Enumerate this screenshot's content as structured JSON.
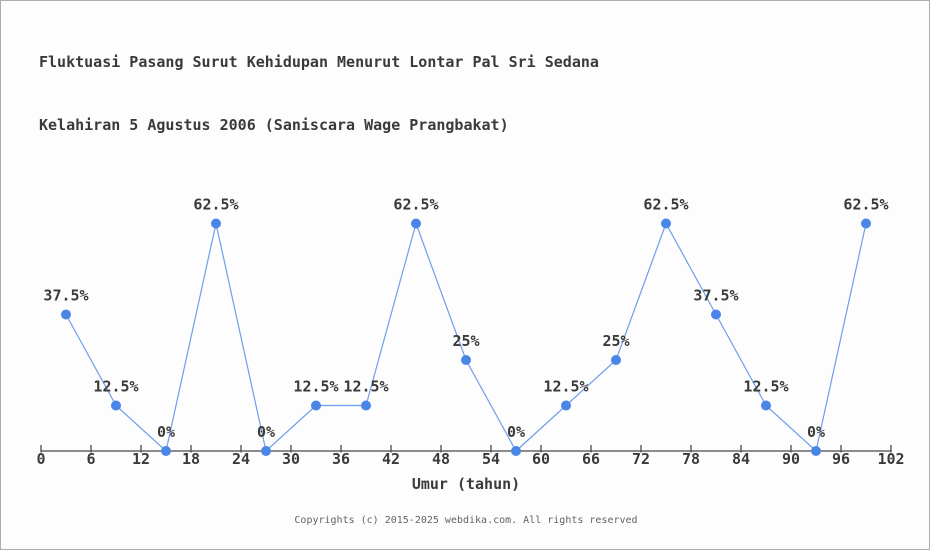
{
  "page": {
    "title_line1": "Fluktuasi Pasang Surut Kehidupan Menurut Lontar Pal Sri Sedana",
    "title_line2": "Kelahiran 5 Agustus 2006 (Saniscara Wage Prangbakat)",
    "footer": "Copyrights (c) 2015-2025 webdika.com. All rights reserved"
  },
  "chart_data": {
    "type": "line",
    "title": "Fluktuasi Pasang Surut Kehidupan Menurut Lontar Pal Sri Sedana Kelahiran 5 Agustus 2006 (Saniscara Wage Prangbakat)",
    "xlabel": "Umur (tahun)",
    "ylabel": "",
    "x": [
      3,
      9,
      15,
      21,
      27,
      33,
      39,
      45,
      51,
      57,
      63,
      69,
      75,
      81,
      87,
      93,
      99
    ],
    "values": [
      37.5,
      12.5,
      0,
      62.5,
      0,
      12.5,
      12.5,
      62.5,
      25,
      0,
      12.5,
      25,
      62.5,
      37.5,
      12.5,
      0,
      62.5
    ],
    "point_labels": [
      "37.5%",
      "12.5%",
      "0%",
      "62.5%",
      "0%",
      "12.5%",
      "12.5%",
      "62.5%",
      "25%",
      "0%",
      "12.5%",
      "25%",
      "62.5%",
      "37.5%",
      "12.5%",
      "0%",
      "62.5%"
    ],
    "x_ticks": [
      0,
      6,
      12,
      18,
      24,
      30,
      36,
      42,
      48,
      54,
      60,
      66,
      72,
      78,
      84,
      90,
      96,
      102
    ],
    "xlim": [
      0,
      102
    ],
    "ylim": [
      0,
      62.5
    ],
    "grid": false,
    "legend": null,
    "colors": {
      "line": "#6d9eeb",
      "marker": "#4a86e8",
      "axis": "#4a4a4a",
      "tick_label": "#3a3a3a",
      "point_label": "#3a3a3a",
      "title": "#3a3a3a",
      "footer": "#636363",
      "background": "#fdfdfd",
      "border": "#ababab"
    }
  }
}
